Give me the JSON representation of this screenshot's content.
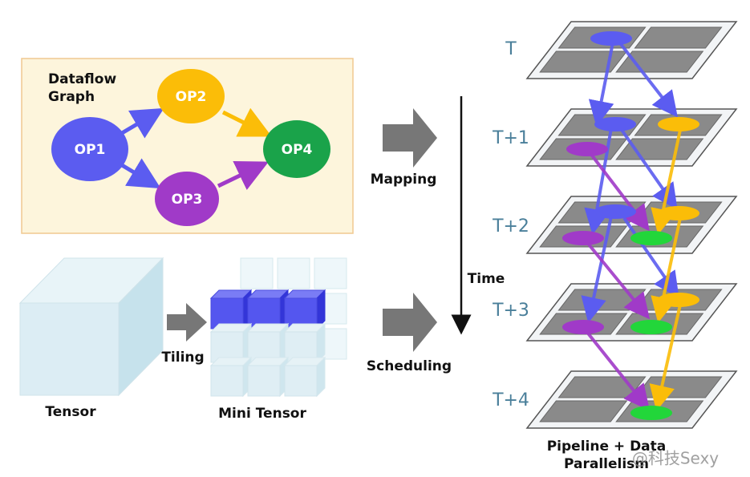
{
  "dataflow_graph": {
    "title_lines": [
      "Dataflow",
      "Graph"
    ],
    "nodes": [
      {
        "label": "OP1"
      },
      {
        "label": "OP2"
      },
      {
        "label": "OP3"
      },
      {
        "label": "OP4"
      }
    ]
  },
  "arrows": {
    "mapping": "Mapping",
    "scheduling": "Scheduling",
    "tiling": "Tiling"
  },
  "tensor": {
    "label": "Tensor"
  },
  "mini_tensor": {
    "label": "Mini Tensor"
  },
  "timeline": {
    "axis_label": "Time",
    "steps": [
      "T",
      "T+1",
      "T+2",
      "T+3",
      "T+4"
    ],
    "caption_lines": [
      "Pipeline + Data",
      "Parallelism"
    ]
  },
  "watermark": "@科技Sexy"
}
